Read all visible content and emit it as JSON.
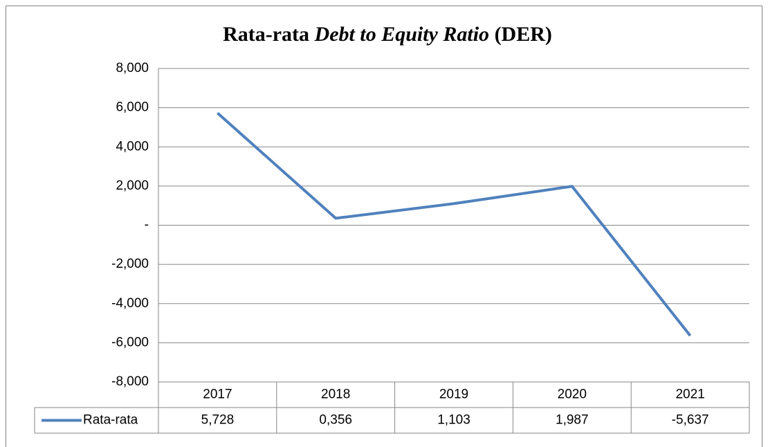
{
  "chart_data": {
    "type": "line",
    "title": [
      "Rata-rata",
      "Debt to Equity Ratio",
      "(DER)"
    ],
    "categories": [
      "2017",
      "2018",
      "2019",
      "2020",
      "2021"
    ],
    "series": [
      {
        "name": "Rata-rata",
        "color": "#4f81bd",
        "values": [
          5.728,
          0.356,
          1.103,
          1.987,
          -5.637
        ],
        "value_labels": [
          "5,728",
          "0,356",
          "1,103",
          "1,987",
          "-5,637"
        ]
      }
    ],
    "ylim": [
      -8,
      8
    ],
    "yticks": [
      {
        "value": -8,
        "label": "-8,000"
      },
      {
        "value": -6,
        "label": "-6,000"
      },
      {
        "value": -4,
        "label": "-4,000"
      },
      {
        "value": -2,
        "label": "-2,000"
      },
      {
        "value": 0,
        "label": "-"
      },
      {
        "value": 2,
        "label": "2,000"
      },
      {
        "value": 4,
        "label": "4,000"
      },
      {
        "value": 6,
        "label": "6,000"
      },
      {
        "value": 8,
        "label": "8,000"
      }
    ],
    "grid": true,
    "data_table": true
  }
}
